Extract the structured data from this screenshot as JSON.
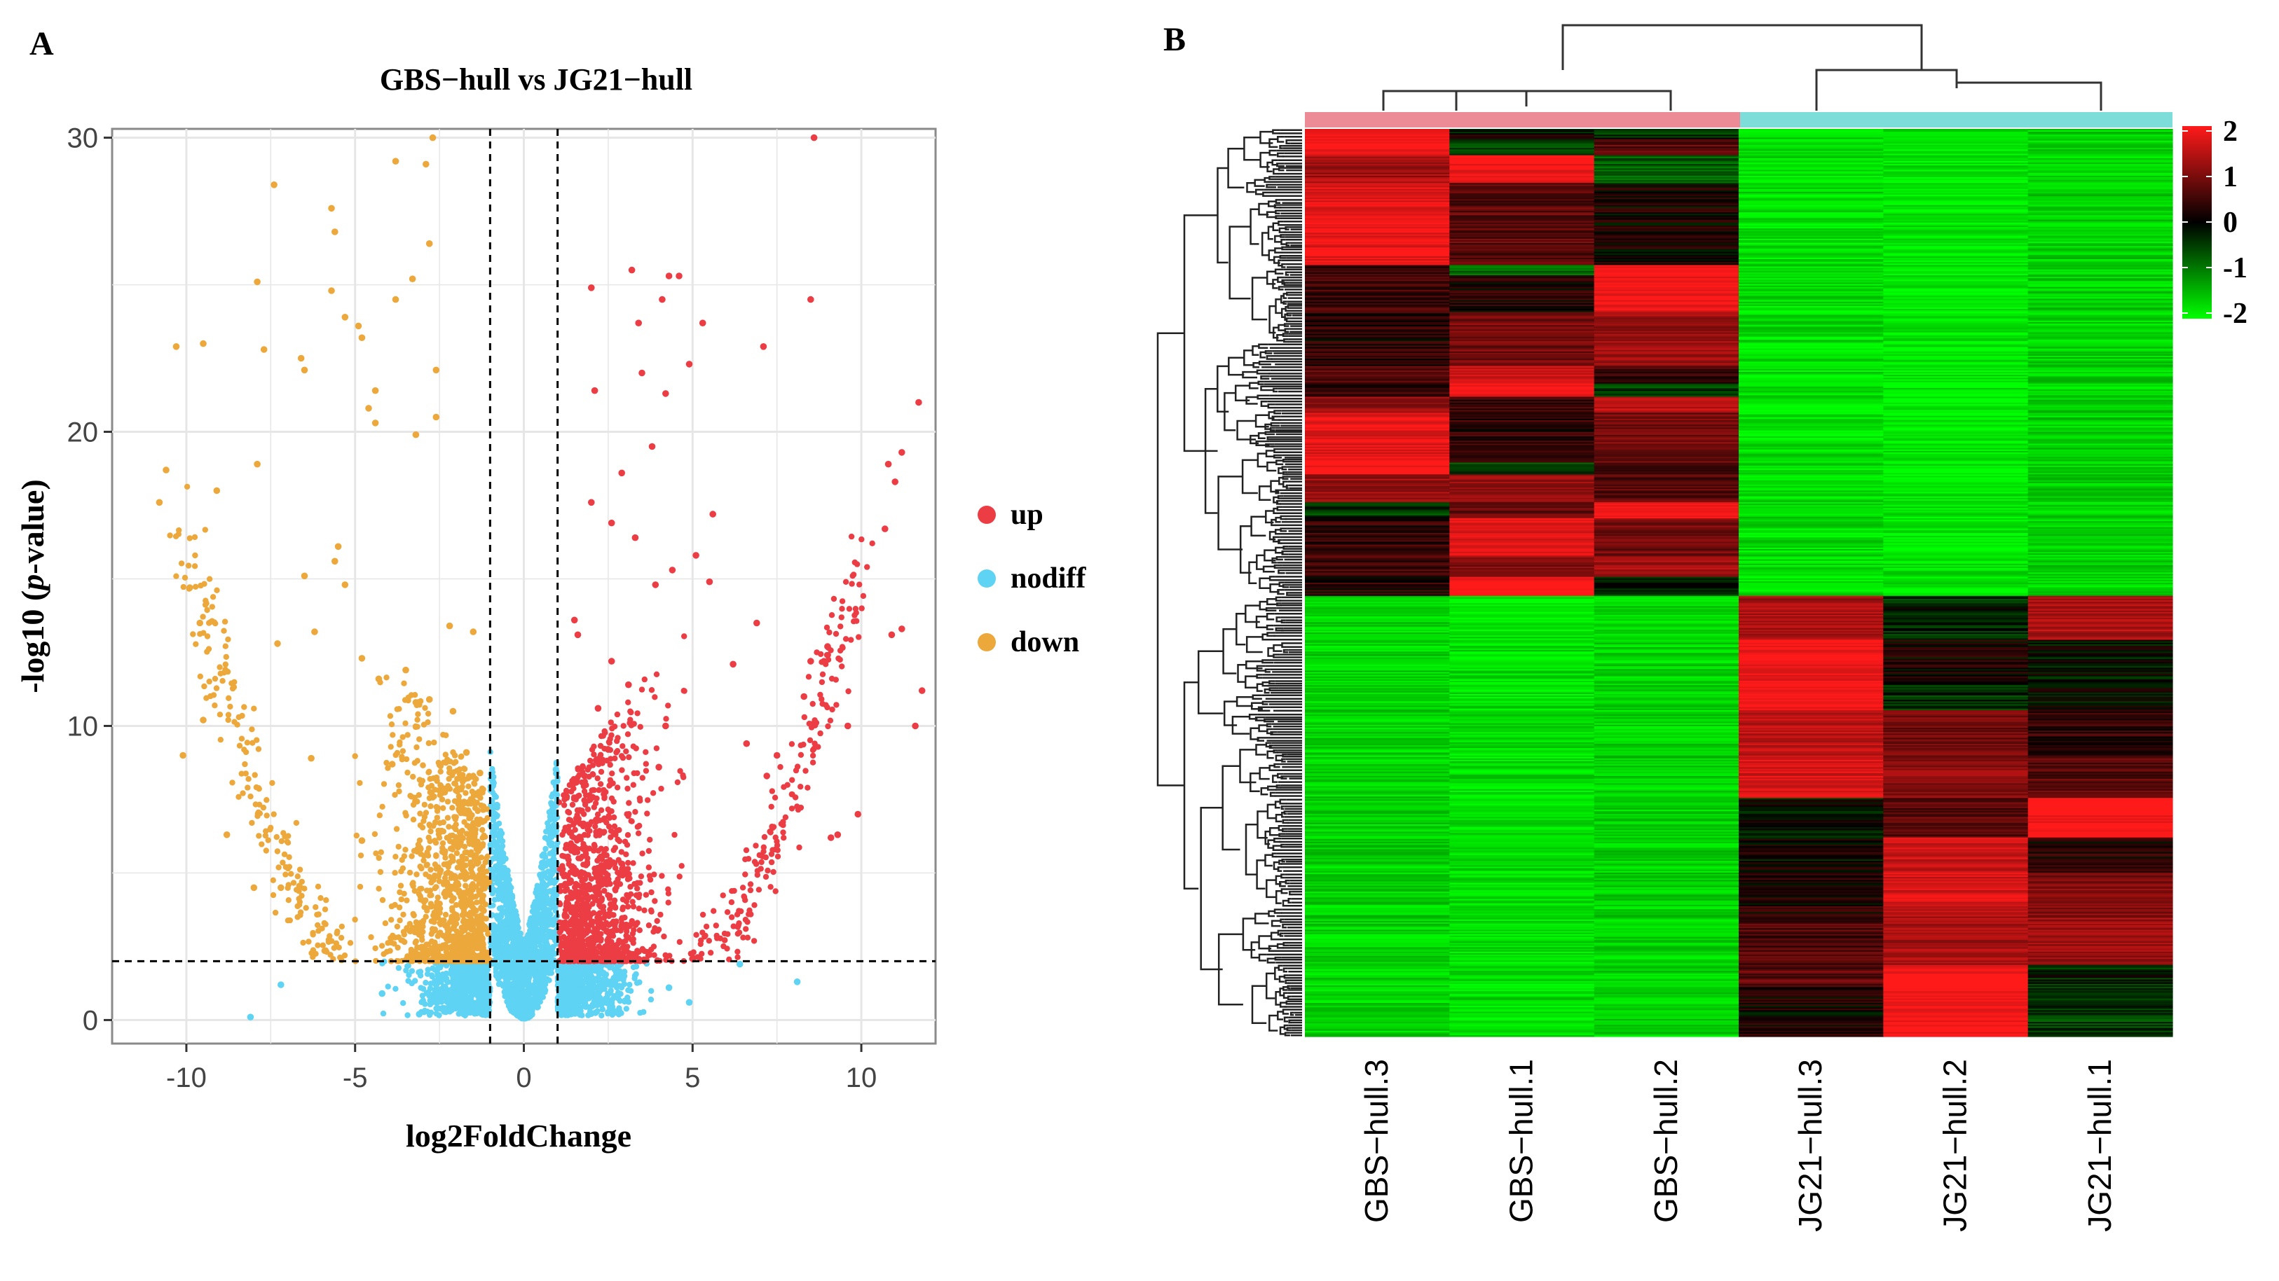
{
  "panel_a": {
    "letter": "A",
    "title": "GBS−hull vs JG21−hull",
    "xlabel": "log2FoldChange",
    "ylabel_prefix": "-log10 (",
    "ylabel_italic": "p",
    "ylabel_suffix": "-value)",
    "legend": [
      {
        "label": "up",
        "color": "#ec3d45"
      },
      {
        "label": "nodiff",
        "color": "#5ed3f3"
      },
      {
        "label": "down",
        "color": "#eda83c"
      }
    ]
  },
  "panel_b": {
    "letter": "B",
    "samples": [
      "GBS−hull.3",
      "GBS−hull.1",
      "GBS−hull.2",
      "JG21−hull.3",
      "JG21−hull.2",
      "JG21−hull.1"
    ],
    "group_colors": [
      "#ec8b96",
      "#7dddd9"
    ],
    "scale_labels": [
      "2",
      "1",
      "0",
      "-1",
      "-2"
    ],
    "scale_colors": [
      "#ff1a1a",
      "#000000",
      "#00ff00"
    ]
  },
  "chart_data": [
    {
      "type": "scatter",
      "title": "GBS−hull vs JG21−hull",
      "xlabel": "log2FoldChange",
      "ylabel": "-log10 (p-value)",
      "xlim": [
        -12.2,
        12.2
      ],
      "ylim": [
        -0.8,
        30.3
      ],
      "xticks": [
        -10,
        -5,
        0,
        5,
        10
      ],
      "yticks": [
        0,
        10,
        20,
        30
      ],
      "thresholds": {
        "log2fc": [
          -1,
          1
        ],
        "neg_log10_p": 2
      },
      "grid": true,
      "legend_position": "right",
      "series": [
        {
          "name": "up",
          "color": "#ec3d45",
          "points": [
            [
              8.6,
              30
            ],
            [
              3.2,
              25.5
            ],
            [
              4.3,
              25.3
            ],
            [
              4.6,
              25.3
            ],
            [
              2,
              24.9
            ],
            [
              8.5,
              24.5
            ],
            [
              4.1,
              24.5
            ],
            [
              5.3,
              23.7
            ],
            [
              3.4,
              23.7
            ],
            [
              7.1,
              22.9
            ],
            [
              4.9,
              22.3
            ],
            [
              3.5,
              22
            ],
            [
              2.1,
              21.4
            ],
            [
              11.7,
              21
            ],
            [
              4.2,
              21.3
            ],
            [
              11.2,
              19.3
            ],
            [
              3.8,
              19.5
            ],
            [
              10.8,
              18.9
            ],
            [
              2.9,
              18.6
            ],
            [
              11,
              18.3
            ],
            [
              2,
              17.6
            ],
            [
              5.6,
              17.2
            ],
            [
              2.6,
              16.9
            ],
            [
              10.7,
              16.7
            ],
            [
              3.3,
              16.4
            ],
            [
              5.1,
              15.8
            ],
            [
              4.4,
              15.3
            ],
            [
              3.9,
              14.8
            ],
            [
              5.5,
              14.9
            ],
            [
              11.2,
              13.3
            ],
            [
              10.9,
              13.1
            ],
            [
              6.9,
              13.5
            ],
            [
              1.6,
              13.1
            ],
            [
              9,
              12.7
            ],
            [
              8.5,
              12.2
            ],
            [
              11.8,
              11.2
            ],
            [
              9.6,
              10
            ],
            [
              11.6,
              10
            ],
            [
              4.2,
              10
            ],
            [
              9.3,
              6.3
            ],
            [
              9.1,
              6.2
            ],
            [
              1.5,
              13.6
            ],
            [
              2.6,
              12.2
            ],
            [
              6.2,
              12.1
            ],
            [
              3.1,
              11.4
            ],
            [
              2.2,
              10.6
            ],
            [
              7.5,
              9
            ],
            [
              8.3,
              11
            ],
            [
              7.2,
              8.3
            ],
            [
              4,
              8.6
            ],
            [
              1.8,
              8.3
            ],
            [
              6.6,
              9.4
            ],
            [
              2.5,
              9.2
            ],
            [
              9.9,
              7
            ]
          ]
        },
        {
          "name": "down",
          "color": "#eda83c",
          "points": [
            [
              -2.7,
              30
            ],
            [
              -3.8,
              29.2
            ],
            [
              -2.9,
              29.1
            ],
            [
              -10.6,
              18.7
            ],
            [
              -10.8,
              17.6
            ],
            [
              -9.9,
              14.7
            ],
            [
              -9.6,
              13.5
            ],
            [
              -7.4,
              28.4
            ],
            [
              -5.7,
              27.6
            ],
            [
              -5.6,
              26.8
            ],
            [
              -2.8,
              26.4
            ],
            [
              -3.3,
              25.2
            ],
            [
              -7.9,
              25.1
            ],
            [
              -5.7,
              24.8
            ],
            [
              -3.8,
              24.5
            ],
            [
              -5.3,
              23.9
            ],
            [
              -4.9,
              23.6
            ],
            [
              -4.8,
              23.2
            ],
            [
              -9.5,
              23
            ],
            [
              -10.3,
              22.9
            ],
            [
              -7.7,
              22.8
            ],
            [
              -6.6,
              22.5
            ],
            [
              -2.6,
              22.1
            ],
            [
              -6.5,
              22.1
            ],
            [
              -4.4,
              21.4
            ],
            [
              -4.6,
              20.8
            ],
            [
              -2.6,
              20.5
            ],
            [
              -4.4,
              20.3
            ],
            [
              -3.2,
              19.9
            ],
            [
              -9.1,
              18
            ],
            [
              -7.9,
              18.9
            ],
            [
              -5.5,
              16.1
            ],
            [
              -5.6,
              15.6
            ],
            [
              -6.5,
              15.1
            ],
            [
              -5.3,
              14.8
            ],
            [
              -7.3,
              12.8
            ],
            [
              -9.5,
              10.2
            ],
            [
              -10.1,
              9
            ],
            [
              -6.3,
              8.9
            ],
            [
              -6.2,
              13.2
            ],
            [
              -4.8,
              12.3
            ],
            [
              -4.3,
              11.6
            ],
            [
              -3.2,
              10.8
            ],
            [
              -2.1,
              10.5
            ],
            [
              -1.5,
              13.2
            ],
            [
              -2.2,
              13.4
            ],
            [
              -3.5,
              11.9
            ],
            [
              -2.8,
              10.9
            ],
            [
              -1.7,
              9.1
            ],
            [
              -1.3,
              8.4
            ],
            [
              -3.9,
              8.7
            ],
            [
              -4.8,
              6.1
            ],
            [
              -7.2,
              4.5
            ],
            [
              -8,
              4.5
            ],
            [
              -8.8,
              6.3
            ]
          ]
        },
        {
          "name": "nodiff",
          "color": "#5ed3f3",
          "points": [
            [
              -7.2,
              1.2
            ],
            [
              8.1,
              1.3
            ],
            [
              -8.1,
              0.1
            ],
            [
              -3.1,
              0.2
            ],
            [
              -2.4,
              0.4
            ],
            [
              4.9,
              0.6
            ],
            [
              6.4,
              1.9
            ],
            [
              -0.8,
              6.3
            ],
            [
              0.8,
              6.3
            ],
            [
              -0.6,
              4.4
            ],
            [
              0.6,
              4.4
            ],
            [
              -0.4,
              2.8
            ],
            [
              0.4,
              2.8
            ],
            [
              -1.2,
              0.8
            ],
            [
              1.3,
              0.8
            ],
            [
              -2.6,
              1.2
            ],
            [
              2.7,
              1.3
            ],
            [
              -4.2,
              0.9
            ],
            [
              4.3,
              1.1
            ],
            [
              0,
              0.1
            ]
          ]
        }
      ]
    },
    {
      "type": "heatmap",
      "columns": [
        "GBS−hull.3",
        "GBS−hull.1",
        "GBS−hull.2",
        "JG21−hull.3",
        "JG21−hull.2",
        "JG21−hull.1"
      ],
      "column_groups": [
        "GBS-hull",
        "GBS-hull",
        "GBS-hull",
        "JG21-hull",
        "JG21-hull",
        "JG21-hull"
      ],
      "color_scale": {
        "min": -2,
        "max": 2,
        "ticks": [
          2,
          1,
          0,
          -1,
          -2
        ],
        "low": "#00ff00",
        "mid": "#000000",
        "high": "#ff1a1a"
      },
      "row_clusters": [
        {
          "rows_fraction": 0.024,
          "values": [
            2.0,
            0.0,
            -0.3
          ]
        },
        {
          "rows_fraction": 0.036,
          "values": [
            1.9,
            -0.4,
            0.6
          ]
        },
        {
          "rows_fraction": 0.06,
          "values": [
            1.2,
            1.9,
            -0.6
          ]
        },
        {
          "rows_fraction": 0.18,
          "values": [
            1.8,
            0.6,
            0.1
          ]
        },
        {
          "rows_fraction": 0.022,
          "values": [
            0.3,
            -0.8,
            2.0
          ]
        },
        {
          "rows_fraction": 0.08,
          "values": [
            0.4,
            0.2,
            1.9
          ]
        },
        {
          "rows_fraction": 0.12,
          "values": [
            0.2,
            0.8,
            1.1
          ]
        },
        {
          "rows_fraction": 0.038,
          "values": [
            0.6,
            1.6,
            0.3
          ]
        },
        {
          "rows_fraction": 0.03,
          "values": [
            0.3,
            2.0,
            -0.3
          ]
        },
        {
          "rows_fraction": 0.034,
          "values": [
            1.0,
            0.3,
            1.4
          ]
        },
        {
          "rows_fraction": 0.11,
          "values": [
            1.8,
            0.3,
            0.8
          ]
        },
        {
          "rows_fraction": 0.026,
          "values": [
            2.0,
            -0.5,
            0.1
          ]
        },
        {
          "rows_fraction": 0.06,
          "values": [
            1.1,
            1.1,
            0.6
          ]
        },
        {
          "rows_fraction": 0.035,
          "values": [
            -0.3,
            0.7,
            2.0
          ]
        },
        {
          "rows_fraction": 0.085,
          "values": [
            0.3,
            1.8,
            0.8
          ]
        },
        {
          "rows_fraction": 0.044,
          "values": [
            0.4,
            0.9,
            1.2
          ]
        },
        {
          "rows_fraction": 0.04,
          "values": [
            0.2,
            2.0,
            -0.2
          ]
        }
      ]
    }
  ]
}
